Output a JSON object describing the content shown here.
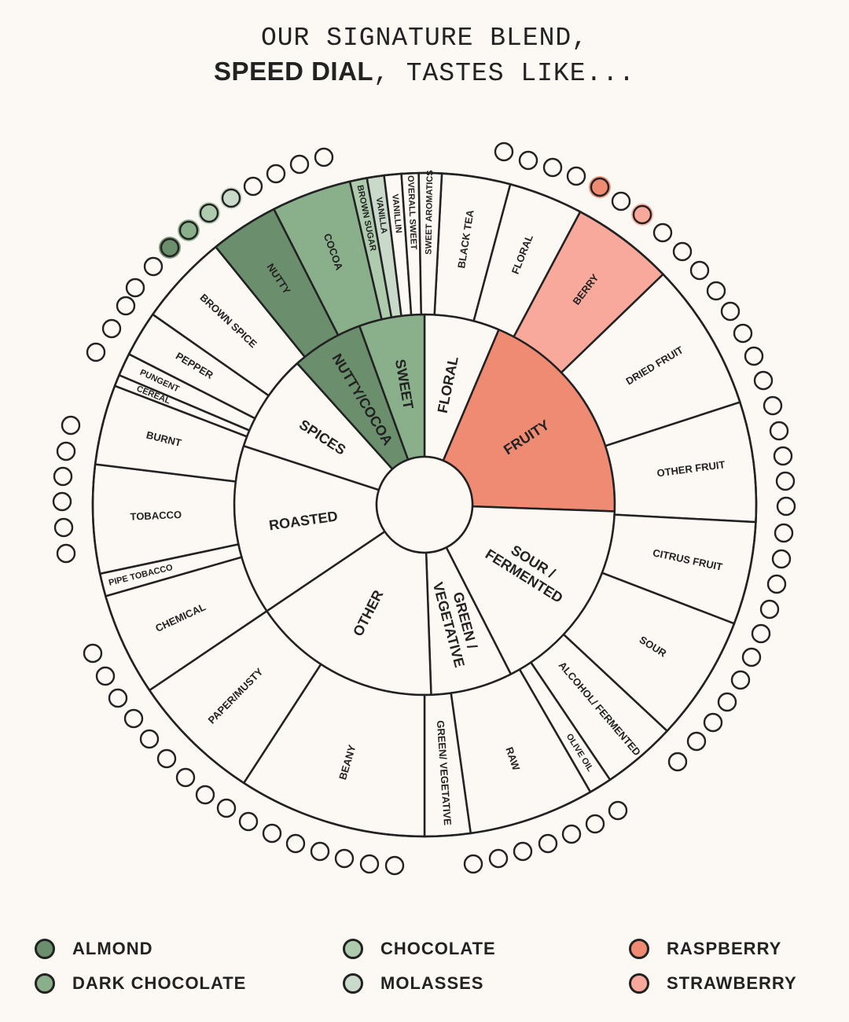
{
  "header": {
    "line1": "OUR SIGNATURE BLEND,",
    "blend_name": "SPEED DIAL",
    "line2_rest": ", TASTES LIKE..."
  },
  "colors": {
    "background": "#fcf8f4",
    "almond": "#6b8f6c",
    "dark_chocolate": "#8aaf8b",
    "chocolate": "#aecbae",
    "molasses": "#c9d9ca",
    "raspberry": "#ef8a73",
    "strawberry": "#f8a99b",
    "empty": "#fcf8f4",
    "stroke": "#222222"
  },
  "wheel": {
    "inner": [
      {
        "label": "FLORAL",
        "highlight": "empty"
      },
      {
        "label": "FRUITY",
        "highlight": "raspberry"
      },
      {
        "label": "SOUR / FERMENTED",
        "highlight": "empty"
      },
      {
        "label": "GREEN / VEGETATIVE",
        "highlight": "empty"
      },
      {
        "label": "OTHER",
        "highlight": "empty"
      },
      {
        "label": "ROASTED",
        "highlight": "empty"
      },
      {
        "label": "SPICES",
        "highlight": "empty"
      },
      {
        "label": "NUTTY/COCOA",
        "highlight": "almond"
      },
      {
        "label": "SWEET",
        "highlight": "dark_chocolate"
      }
    ],
    "outer": [
      {
        "label": "BLACK TEA",
        "highlight": "empty"
      },
      {
        "label": "FLORAL",
        "highlight": "empty"
      },
      {
        "label": "BERRY",
        "highlight": "strawberry"
      },
      {
        "label": "DRIED FRUIT",
        "highlight": "empty"
      },
      {
        "label": "OTHER FRUIT",
        "highlight": "empty"
      },
      {
        "label": "CITRUS FRUIT",
        "highlight": "empty"
      },
      {
        "label": "SOUR",
        "highlight": "empty"
      },
      {
        "label": "ALCOHOL/ FERMENTED",
        "highlight": "empty"
      },
      {
        "label": "OLIVE OIL",
        "highlight": "empty"
      },
      {
        "label": "RAW",
        "highlight": "empty"
      },
      {
        "label": "GREEN/ VEGETATIVE",
        "highlight": "empty"
      },
      {
        "label": "BEANY",
        "highlight": "empty"
      },
      {
        "label": "PAPER/MUSTY",
        "highlight": "empty"
      },
      {
        "label": "CHEMICAL",
        "highlight": "empty"
      },
      {
        "label": "PIPE TOBACCO",
        "highlight": "empty"
      },
      {
        "label": "TOBACCO",
        "highlight": "empty"
      },
      {
        "label": "BURNT",
        "highlight": "empty"
      },
      {
        "label": "CEREAL",
        "highlight": "empty"
      },
      {
        "label": "PUNGENT",
        "highlight": "empty"
      },
      {
        "label": "PEPPER",
        "highlight": "empty"
      },
      {
        "label": "BROWN SPICE",
        "highlight": "empty"
      },
      {
        "label": "NUTTY",
        "highlight": "almond"
      },
      {
        "label": "COCOA",
        "highlight": "dark_chocolate"
      },
      {
        "label": "BROWN SUGAR",
        "highlight": "chocolate"
      },
      {
        "label": "VANILLA",
        "highlight": "molasses"
      },
      {
        "label": "VANILLIN",
        "highlight": "empty"
      },
      {
        "label": "OVERALL SWEET",
        "highlight": "empty"
      },
      {
        "label": "SWEET AROMATICS",
        "highlight": "empty"
      }
    ],
    "selected_dots": {
      "left": [
        {
          "index": 4,
          "color": "almond"
        },
        {
          "index": 5,
          "color": "dark_chocolate"
        },
        {
          "index": 6,
          "color": "chocolate"
        },
        {
          "index": 7,
          "color": "molasses"
        }
      ],
      "right": [
        {
          "index": 4,
          "color": "raspberry"
        },
        {
          "index": 6,
          "color": "strawberry"
        }
      ]
    }
  },
  "legend": [
    {
      "label": "ALMOND",
      "color": "almond"
    },
    {
      "label": "DARK CHOCOLATE",
      "color": "dark_chocolate"
    },
    {
      "label": "CHOCOLATE",
      "color": "chocolate"
    },
    {
      "label": "MOLASSES",
      "color": "molasses"
    },
    {
      "label": "RASPBERRY",
      "color": "raspberry"
    },
    {
      "label": "STRAWBERRY",
      "color": "strawberry"
    }
  ]
}
